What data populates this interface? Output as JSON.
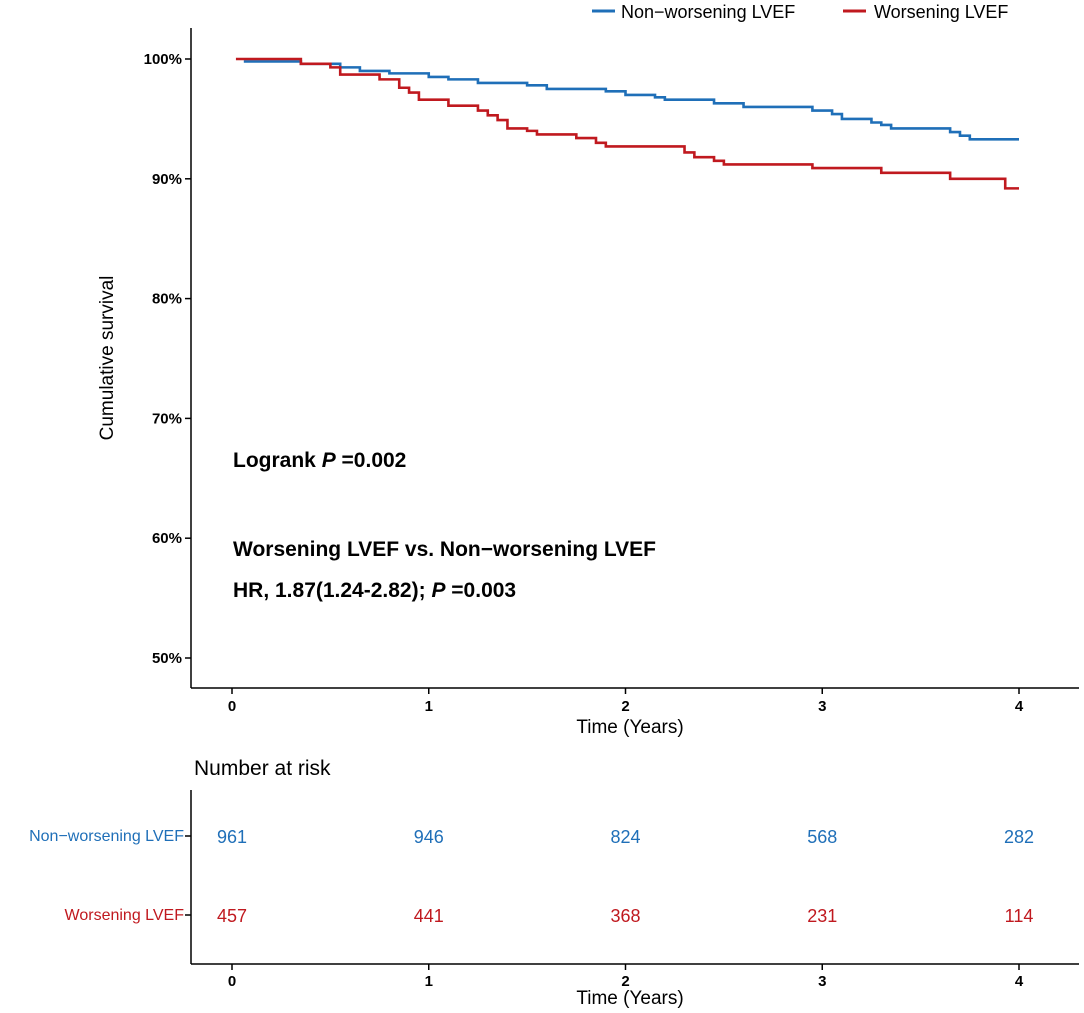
{
  "colors": {
    "non_worsening": "#1f6fb8",
    "worsening": "#c0191f",
    "axis": "#000000"
  },
  "chart_data": [
    {
      "type": "line",
      "subtype": "kaplan-meier",
      "title": "",
      "xlabel": "Time (Years)",
      "ylabel": "Cumulative survival",
      "xlim": [
        -0.2,
        4.3
      ],
      "ylim": [
        47,
        102
      ],
      "x_ticks": [
        0,
        1,
        2,
        3,
        4
      ],
      "x_tick_labels": [
        "0",
        "1",
        "2",
        "3",
        "4"
      ],
      "y_ticks": [
        50,
        60,
        70,
        80,
        90,
        100
      ],
      "y_tick_labels": [
        "50%",
        "60%",
        "70%",
        "80%",
        "90%",
        "100%"
      ],
      "legend": {
        "position": "top-right",
        "entries": [
          "Non−worsening LVEF",
          "Worsening LVEF"
        ]
      },
      "series": [
        {
          "name": "Non−worsening LVEF",
          "color": "#1f6fb8",
          "points": [
            [
              0.06,
              99.8
            ],
            [
              0.35,
              99.6
            ],
            [
              0.55,
              99.3
            ],
            [
              0.65,
              99.0
            ],
            [
              0.8,
              98.8
            ],
            [
              1.0,
              98.5
            ],
            [
              1.1,
              98.3
            ],
            [
              1.25,
              98.0
            ],
            [
              1.5,
              97.8
            ],
            [
              1.6,
              97.5
            ],
            [
              1.9,
              97.3
            ],
            [
              2.0,
              97.0
            ],
            [
              2.15,
              96.8
            ],
            [
              2.2,
              96.6
            ],
            [
              2.45,
              96.3
            ],
            [
              2.6,
              96.0
            ],
            [
              2.95,
              95.7
            ],
            [
              3.05,
              95.4
            ],
            [
              3.1,
              95.0
            ],
            [
              3.25,
              94.7
            ],
            [
              3.3,
              94.5
            ],
            [
              3.35,
              94.2
            ],
            [
              3.65,
              93.9
            ],
            [
              3.7,
              93.6
            ],
            [
              3.75,
              93.3
            ],
            [
              4.0,
              93.3
            ]
          ]
        },
        {
          "name": "Worsening LVEF",
          "color": "#c0191f",
          "points": [
            [
              0.02,
              100.0
            ],
            [
              0.3,
              100.0
            ],
            [
              0.35,
              99.6
            ],
            [
              0.5,
              99.3
            ],
            [
              0.55,
              98.7
            ],
            [
              0.75,
              98.3
            ],
            [
              0.85,
              97.6
            ],
            [
              0.9,
              97.2
            ],
            [
              0.95,
              96.6
            ],
            [
              1.1,
              96.1
            ],
            [
              1.25,
              95.7
            ],
            [
              1.3,
              95.3
            ],
            [
              1.35,
              94.9
            ],
            [
              1.4,
              94.2
            ],
            [
              1.5,
              94.0
            ],
            [
              1.55,
              93.7
            ],
            [
              1.75,
              93.4
            ],
            [
              1.85,
              93.0
            ],
            [
              1.9,
              92.7
            ],
            [
              2.3,
              92.2
            ],
            [
              2.35,
              91.8
            ],
            [
              2.45,
              91.5
            ],
            [
              2.5,
              91.2
            ],
            [
              2.95,
              90.9
            ],
            [
              3.3,
              90.5
            ],
            [
              3.65,
              90.0
            ],
            [
              3.93,
              89.2
            ],
            [
              4.0,
              89.2
            ]
          ]
        }
      ],
      "annotations": {
        "logrank_prefix": "Logrank ",
        "logrank_p_symbol": "P",
        "logrank_value": " =0.002",
        "comparison": "Worsening LVEF vs. Non−worsening LVEF",
        "hr_prefix": "HR, 1.87(1.24-2.82); ",
        "hr_p_symbol": "P",
        "hr_value": " =0.003"
      }
    },
    {
      "type": "table",
      "title": "Number at risk",
      "xlabel": "Time (Years)",
      "x_ticks": [
        0,
        1,
        2,
        3,
        4
      ],
      "x_tick_labels": [
        "0",
        "1",
        "2",
        "3",
        "4"
      ],
      "rows": [
        {
          "label": "Non−worsening LVEF",
          "color": "#1f6fb8",
          "values": [
            "961",
            "946",
            "824",
            "568",
            "282"
          ]
        },
        {
          "label": "Worsening LVEF",
          "color": "#c0191f",
          "values": [
            "457",
            "441",
            "368",
            "231",
            "114"
          ]
        }
      ]
    }
  ]
}
